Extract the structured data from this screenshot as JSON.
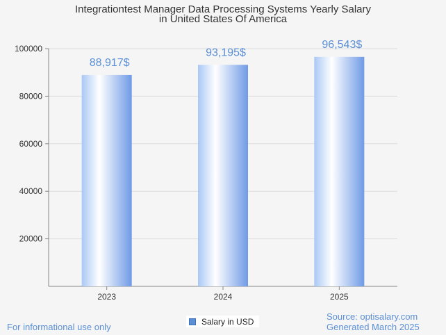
{
  "chart_data": {
    "type": "bar",
    "title_line1": "Integrationtest Manager Data Processing Systems Yearly Salary",
    "title_line2": "in United States Of America",
    "categories": [
      "2023",
      "2024",
      "2025"
    ],
    "series": [
      {
        "name": "Salary in USD",
        "values": [
          88917,
          93195,
          96543
        ]
      }
    ],
    "value_labels": [
      "88,917$",
      "93,195$",
      "96,543$"
    ],
    "ylim": [
      0,
      100000
    ],
    "yticks": [
      20000,
      40000,
      60000,
      80000,
      100000
    ],
    "grid": true,
    "legend_position": "bottom-center",
    "colors": {
      "bar": "#5b8fd6",
      "label": "#5b8fd6"
    }
  },
  "footer": {
    "left": "For informational use only",
    "source": "Source: optisalary.com",
    "generated": "Generated March 2025"
  }
}
